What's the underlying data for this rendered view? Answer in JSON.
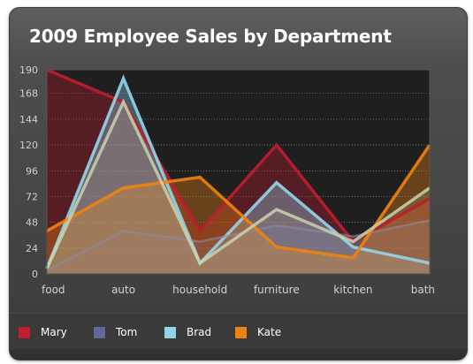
{
  "chart_data": {
    "type": "area",
    "title": "2009 Employee Sales by Department",
    "categories": [
      "food",
      "auto",
      "household",
      "furniture",
      "kitchen",
      "bath"
    ],
    "yticks": [
      0,
      24,
      48,
      72,
      96,
      120,
      144,
      168,
      190
    ],
    "ylim": [
      0,
      190
    ],
    "grid": true,
    "legend_position": "bottom",
    "series": [
      {
        "name": "Mary",
        "color": "#be1e2d",
        "values": [
          190,
          160,
          40,
          120,
          30,
          70
        ]
      },
      {
        "name": "Tom",
        "color": "#666699",
        "values": [
          3,
          40,
          30,
          45,
          35,
          50
        ]
      },
      {
        "name": "Brad",
        "color": "#92d5ea",
        "values": [
          5,
          182,
          10,
          85,
          25,
          10
        ]
      },
      {
        "name": "Kate",
        "color": "#ee8310",
        "values": [
          40,
          80,
          90,
          25,
          15,
          120
        ]
      }
    ],
    "overlay": {
      "name": "",
      "color": "#c8d4b0",
      "values": [
        5,
        160,
        10,
        60,
        30,
        80
      ]
    }
  }
}
